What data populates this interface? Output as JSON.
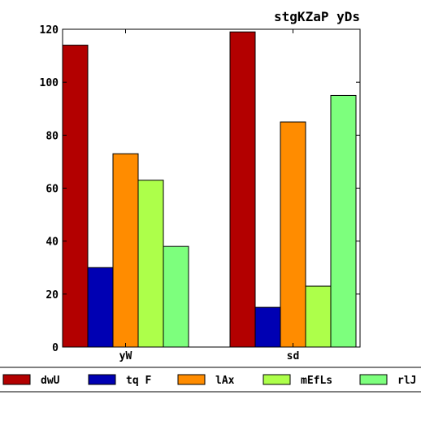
{
  "chart_data": {
    "type": "bar",
    "title": "stgKZaP yDs",
    "xlabel": "",
    "ylabel": "",
    "categories": [
      "yW",
      "sd"
    ],
    "ylim": [
      0,
      120
    ],
    "yticks": [
      0,
      20,
      40,
      60,
      80,
      100,
      120
    ],
    "grid": false,
    "legend_position": "bottom",
    "series": [
      {
        "name": "dwU",
        "color": "#b30000",
        "values": [
          114,
          119
        ]
      },
      {
        "name": "tq F",
        "color": "#0000b3",
        "values": [
          30,
          15
        ]
      },
      {
        "name": "lAx",
        "color": "#ff8c00",
        "values": [
          73,
          85
        ]
      },
      {
        "name": "mEfLs",
        "color": "#adff4a",
        "values": [
          63,
          23
        ]
      },
      {
        "name": "rlJ",
        "color": "#7dff7d",
        "values": [
          38,
          95
        ]
      }
    ]
  }
}
